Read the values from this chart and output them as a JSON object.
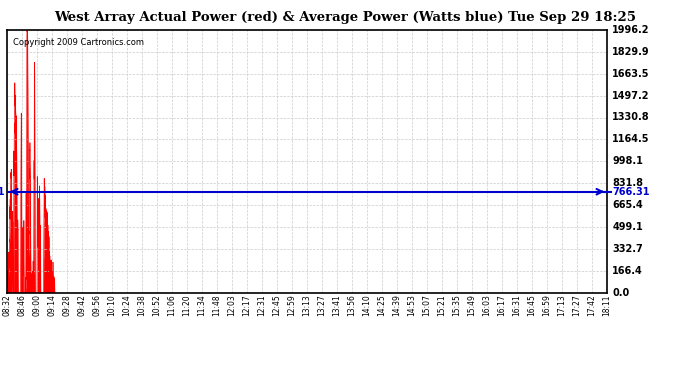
{
  "title": "West Array Actual Power (red) & Average Power (Watts blue) Tue Sep 29 18:25",
  "copyright": "Copyright 2009 Cartronics.com",
  "average_power": 766.31,
  "y_max": 1996.2,
  "y_ticks": [
    0.0,
    166.4,
    332.7,
    499.1,
    665.4,
    831.8,
    998.1,
    1164.5,
    1330.8,
    1497.2,
    1663.5,
    1829.9,
    1996.2
  ],
  "x_labels": [
    "08:32",
    "08:46",
    "09:00",
    "09:14",
    "09:28",
    "09:42",
    "09:56",
    "10:10",
    "10:24",
    "10:38",
    "10:52",
    "11:06",
    "11:20",
    "11:34",
    "11:48",
    "12:03",
    "12:17",
    "12:31",
    "12:45",
    "12:59",
    "13:13",
    "13:27",
    "13:41",
    "13:56",
    "14:10",
    "14:25",
    "14:39",
    "14:53",
    "15:07",
    "15:21",
    "15:35",
    "15:49",
    "16:03",
    "16:17",
    "16:31",
    "16:45",
    "16:59",
    "17:13",
    "17:27",
    "17:42",
    "18:11"
  ],
  "bg_color": "#ffffff",
  "fill_color": "#ff0000",
  "line_color": "#0000cc",
  "grid_color": "#cccccc",
  "border_color": "#000000"
}
